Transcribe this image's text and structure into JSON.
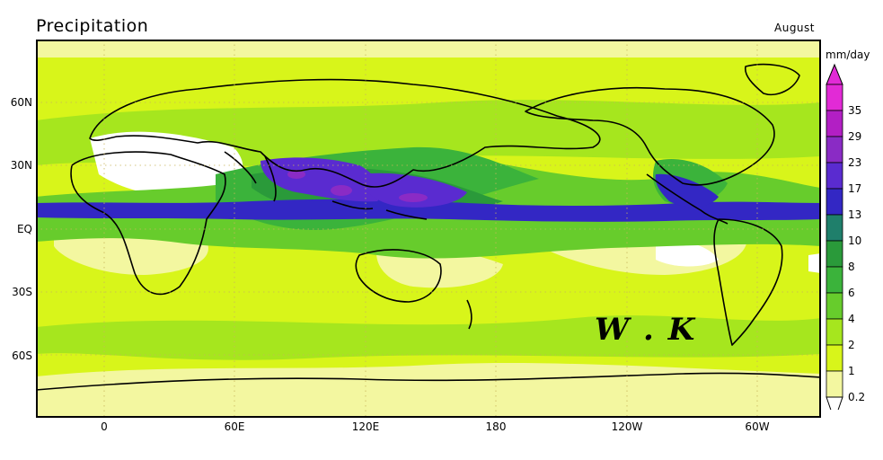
{
  "header": {
    "title": "Precipitation",
    "month": "August"
  },
  "colorbar": {
    "units": "mm/day",
    "levels": [
      "35",
      "29",
      "23",
      "17",
      "13",
      "10",
      "8",
      "6",
      "4",
      "2",
      "1",
      "0.2"
    ],
    "colors": [
      "#e22ad6",
      "#b21fc4",
      "#8a2bc5",
      "#5a2bd0",
      "#3327c4",
      "#1f7f6b",
      "#2a9a3a",
      "#3bb33b",
      "#67cc2c",
      "#a6e61e",
      "#d8f51a",
      "#f3f7a0"
    ]
  },
  "axes": {
    "lat_labels": [
      "60N",
      "30N",
      "EQ",
      "30S",
      "60S"
    ],
    "lon_labels": [
      "0",
      "60E",
      "120E",
      "180",
      "120W",
      "60W"
    ]
  },
  "watermark": "W . K"
}
